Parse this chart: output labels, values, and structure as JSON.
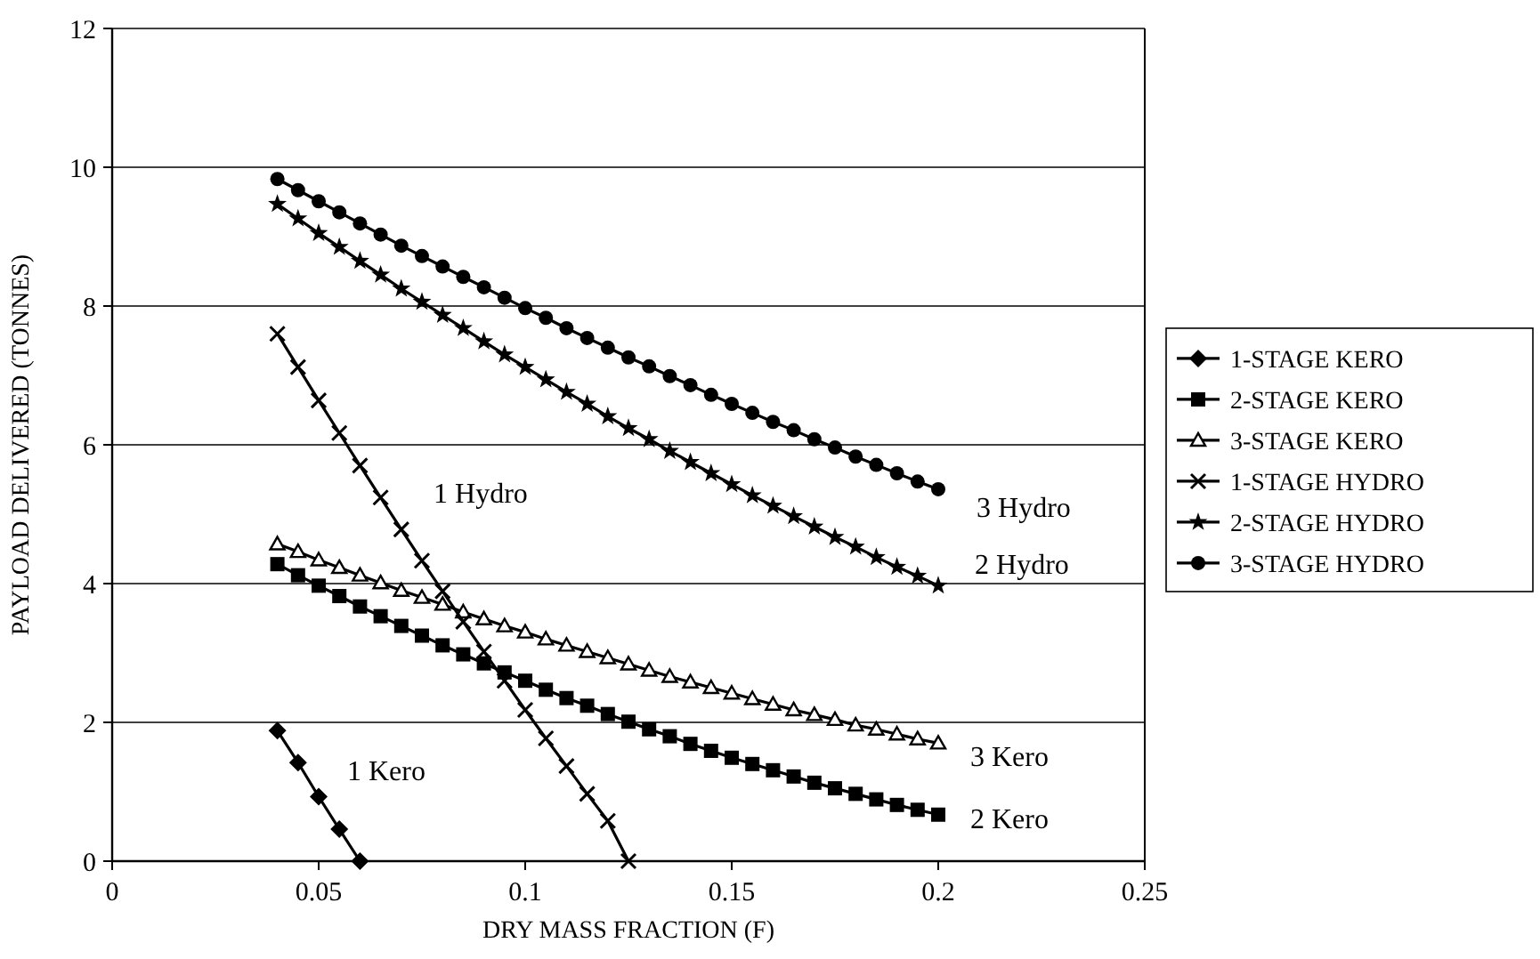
{
  "chart_data": {
    "type": "line",
    "xlabel": "DRY MASS FRACTION (F)",
    "ylabel": "PAYLOAD DELIVERED (TONNES)",
    "x": [
      0.04,
      0.045,
      0.05,
      0.055,
      0.06,
      0.065,
      0.07,
      0.075,
      0.08,
      0.085,
      0.09,
      0.095,
      0.1,
      0.105,
      0.11,
      0.115,
      0.12,
      0.125,
      0.13,
      0.135,
      0.14,
      0.145,
      0.15,
      0.155,
      0.16,
      0.165,
      0.17,
      0.175,
      0.18,
      0.185,
      0.19,
      0.195,
      0.2
    ],
    "series": [
      {
        "name": "1-STAGE KERO",
        "color": "#000000",
        "marker": "diamond",
        "x": [
          0.04,
          0.045,
          0.05,
          0.055,
          0.06
        ],
        "values": [
          1.88,
          1.42,
          0.93,
          0.46,
          0
        ]
      },
      {
        "name": "2-STAGE KERO",
        "color": "#000000",
        "marker": "square",
        "values": [
          4.28,
          4.12,
          3.97,
          3.82,
          3.67,
          3.53,
          3.39,
          3.25,
          3.11,
          2.98,
          2.85,
          2.72,
          2.6,
          2.47,
          2.35,
          2.24,
          2.12,
          2.01,
          1.9,
          1.8,
          1.69,
          1.59,
          1.49,
          1.4,
          1.31,
          1.22,
          1.13,
          1.05,
          0.97,
          0.89,
          0.81,
          0.74,
          0.67
        ]
      },
      {
        "name": "3-STAGE KERO",
        "color": "#000000",
        "marker": "triangle",
        "values": [
          4.57,
          4.46,
          4.34,
          4.23,
          4.12,
          4.01,
          3.9,
          3.8,
          3.7,
          3.59,
          3.49,
          3.39,
          3.3,
          3.2,
          3.11,
          3.02,
          2.93,
          2.84,
          2.75,
          2.66,
          2.58,
          2.5,
          2.42,
          2.34,
          2.26,
          2.18,
          2.11,
          2.04,
          1.96,
          1.9,
          1.83,
          1.76,
          1.7
        ]
      },
      {
        "name": "1-STAGE HYDRO",
        "color": "#000000",
        "marker": "cross",
        "x": [
          0.04,
          0.045,
          0.05,
          0.055,
          0.06,
          0.065,
          0.07,
          0.075,
          0.08,
          0.085,
          0.09,
          0.095,
          0.1,
          0.105,
          0.11,
          0.115,
          0.12,
          0.125
        ],
        "values": [
          7.6,
          7.12,
          6.64,
          6.17,
          5.7,
          5.24,
          4.78,
          4.33,
          3.89,
          3.45,
          3.02,
          2.6,
          2.18,
          1.77,
          1.37,
          0.97,
          0.58,
          0
        ]
      },
      {
        "name": "2-STAGE HYDRO",
        "color": "#000000",
        "marker": "star",
        "values": [
          9.47,
          9.26,
          9.05,
          8.85,
          8.65,
          8.45,
          8.25,
          8.06,
          7.87,
          7.68,
          7.49,
          7.3,
          7.12,
          6.94,
          6.76,
          6.59,
          6.41,
          6.24,
          6.08,
          5.91,
          5.75,
          5.59,
          5.43,
          5.27,
          5.12,
          4.97,
          4.82,
          4.67,
          4.53,
          4.38,
          4.24,
          4.11,
          3.97
        ]
      },
      {
        "name": "3-STAGE HYDRO",
        "color": "#000000",
        "marker": "circle",
        "values": [
          9.83,
          9.67,
          9.51,
          9.35,
          9.19,
          9.03,
          8.87,
          8.72,
          8.57,
          8.42,
          8.27,
          8.12,
          7.97,
          7.83,
          7.68,
          7.54,
          7.4,
          7.26,
          7.13,
          6.99,
          6.86,
          6.72,
          6.59,
          6.46,
          6.33,
          6.21,
          6.08,
          5.96,
          5.83,
          5.71,
          5.59,
          5.47,
          5.36
        ]
      }
    ],
    "annotations": [
      "1 Kero",
      "1 Hydro",
      "3 Hydro",
      "2 Hydro",
      "3 Kero",
      "2 Kero"
    ],
    "xlim": [
      0,
      0.25
    ],
    "xticks": [
      0,
      0.05,
      0.1,
      0.15,
      0.2,
      0.25
    ],
    "ylim": [
      0,
      12
    ],
    "yticks": [
      0,
      2,
      4,
      6,
      8,
      10,
      12
    ],
    "grid": "y",
    "legend": "right",
    "line_style": "solid"
  }
}
